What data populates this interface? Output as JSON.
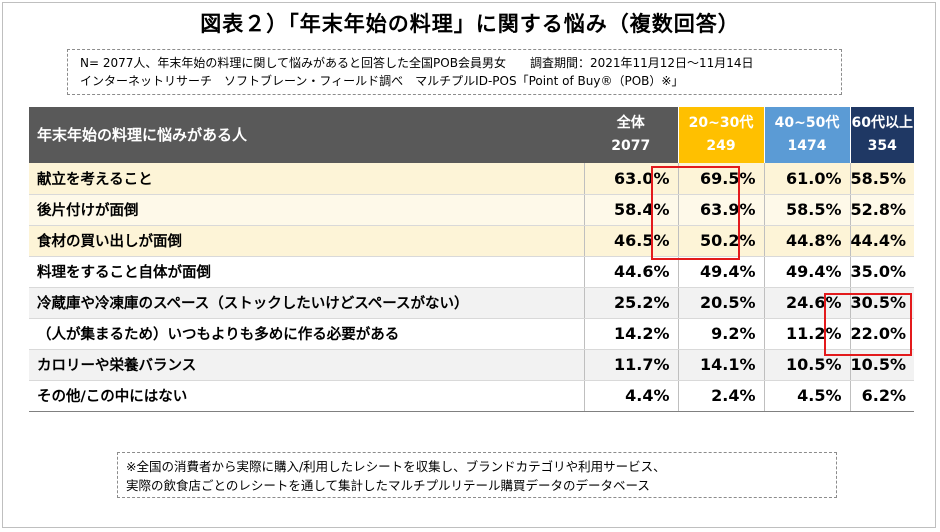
{
  "title": "図表２）「年末年始の料理」に関する悩み（複数回答）",
  "survey": {
    "line1": "N= 2077人、年末年始の料理に関して悩みがあると回答した全国POB会員男女　　調査期間：2021年11月12日～11月14日",
    "line2": "インターネットリサーチ　ソフトブレーン・フィールド調べ　マルチプルID-POS「Point of Buy®（POB）※」"
  },
  "chart_data": {
    "type": "table",
    "row_header": "年末年始の料理に悩みがある人",
    "columns": [
      {
        "name": "全体",
        "n": "2077",
        "color": "#595959"
      },
      {
        "name": "20~30代",
        "n": "249",
        "color": "#ffc000"
      },
      {
        "name": "40~50代",
        "n": "1474",
        "color": "#5b9bd5"
      },
      {
        "name": "60代以上",
        "n": "354",
        "color": "#1f3864"
      }
    ],
    "rows": [
      {
        "label": "献立を考えること",
        "values": [
          "63.0%",
          "69.5%",
          "61.0%",
          "58.5%"
        ]
      },
      {
        "label": "後片付けが面倒",
        "values": [
          "58.4%",
          "63.9%",
          "58.5%",
          "52.8%"
        ]
      },
      {
        "label": "食材の買い出しが面倒",
        "values": [
          "46.5%",
          "50.2%",
          "44.8%",
          "44.4%"
        ]
      },
      {
        "label": "料理をすること自体が面倒",
        "values": [
          "44.6%",
          "49.4%",
          "49.4%",
          "35.0%"
        ]
      },
      {
        "label": "冷蔵庫や冷凍庫のスペース（ストックしたいけどスペースがない）",
        "values": [
          "25.2%",
          "20.5%",
          "24.6%",
          "30.5%"
        ]
      },
      {
        "label": "（人が集まるため）いつもよりも多めに作る必要がある",
        "values": [
          "14.2%",
          "9.2%",
          "11.2%",
          "22.0%"
        ]
      },
      {
        "label": "カロリーや栄養バランス",
        "values": [
          "11.7%",
          "14.1%",
          "10.5%",
          "10.5%"
        ]
      },
      {
        "label": "その他/この中にはない",
        "values": [
          "4.4%",
          "2.4%",
          "4.5%",
          "6.2%"
        ]
      }
    ],
    "highlight_color": "#e31a1c"
  },
  "note": {
    "line1": "※全国の消費者から実際に購入/利用したレシートを収集し、ブランドカテゴリや利用サービス、",
    "line2": "実際の飲食店ごとのレシートを通して集計したマルチプルリテール購買データのデータベース"
  }
}
